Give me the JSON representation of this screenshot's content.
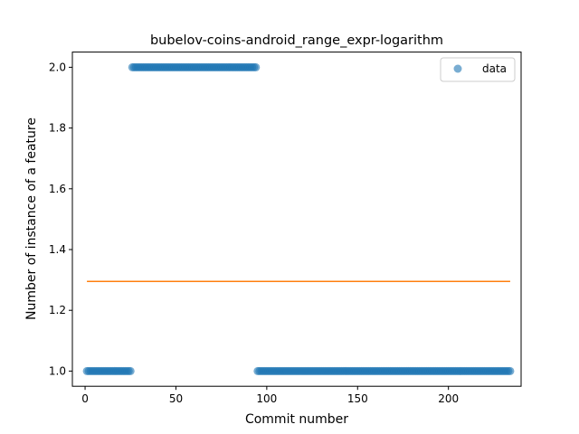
{
  "chart_data": {
    "type": "scatter",
    "title": "bubelov-coins-android_range_expr-logarithm",
    "xlabel": "Commit number",
    "ylabel": "Number of instance of a feature",
    "xlim": [
      -7,
      240
    ],
    "ylim": [
      0.95,
      2.05
    ],
    "xticks": [
      0,
      50,
      100,
      150,
      200
    ],
    "yticks": [
      1.0,
      1.2,
      1.4,
      1.6,
      1.8,
      2.0
    ],
    "ytick_labels": [
      "1.0",
      "1.2",
      "1.4",
      "1.6",
      "1.8",
      "2.0"
    ],
    "grid": false,
    "legend": {
      "position": "top-right",
      "entries": [
        "data"
      ]
    },
    "colors": {
      "points": "#1f77b4",
      "line": "#ff7f0e"
    },
    "series": [
      {
        "name": "data",
        "kind": "scatter",
        "segments": [
          {
            "x_start": 1,
            "x_end": 25,
            "y": 1
          },
          {
            "x_start": 26,
            "x_end": 94,
            "y": 2
          },
          {
            "x_start": 95,
            "x_end": 234,
            "y": 1
          }
        ]
      },
      {
        "kind": "line",
        "x": [
          1,
          234
        ],
        "y": [
          1.295,
          1.295
        ]
      }
    ]
  }
}
